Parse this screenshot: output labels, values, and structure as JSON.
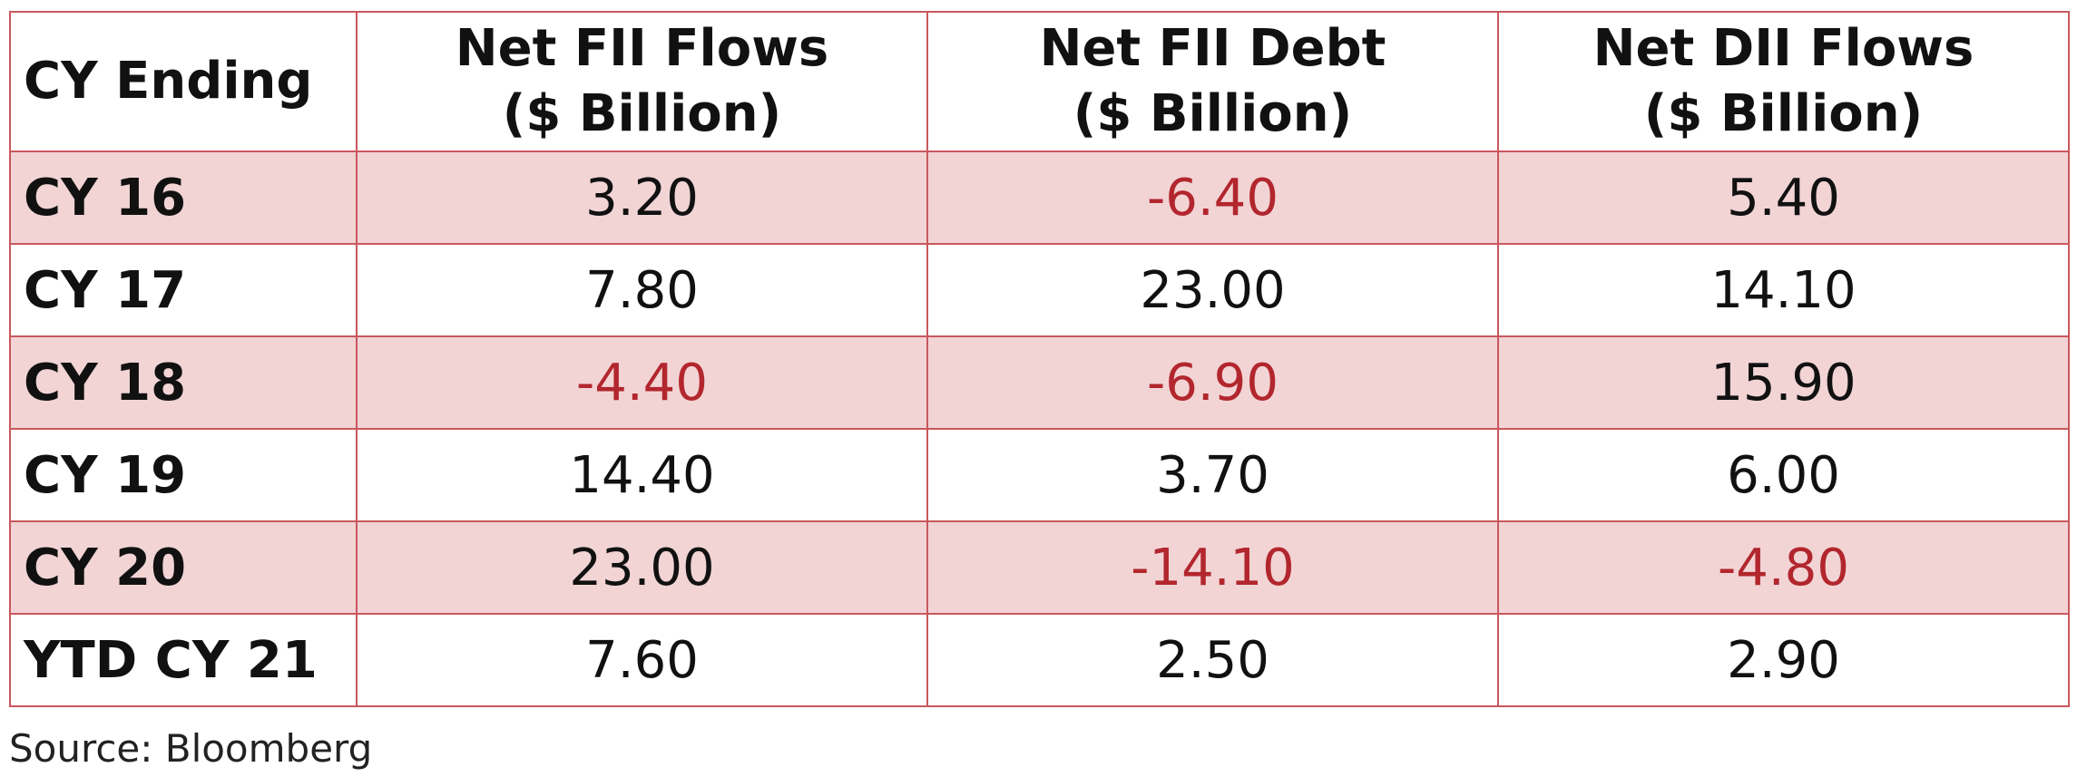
{
  "chart_data": {
    "type": "table",
    "columns": [
      "CY Ending",
      "Net FII Flows\n($ Billion)",
      "Net FII Debt\n($ Billion)",
      "Net DII Flows\n($ Billion)"
    ],
    "rows": [
      {
        "label": "CY 16",
        "values": [
          "3.20",
          "-6.40",
          "5.40"
        ]
      },
      {
        "label": "CY 17",
        "values": [
          "7.80",
          "23.00",
          "14.10"
        ]
      },
      {
        "label": "CY 18",
        "values": [
          "-4.40",
          "-6.90",
          "15.90"
        ]
      },
      {
        "label": "CY 19",
        "values": [
          "14.40",
          "3.70",
          "6.00"
        ]
      },
      {
        "label": "CY 20",
        "values": [
          "23.00",
          "-14.10",
          "-4.80"
        ]
      },
      {
        "label": "YTD CY 21",
        "values": [
          "7.60",
          "2.50",
          "2.90"
        ]
      }
    ],
    "source": "Source: Bloomberg"
  },
  "colors": {
    "border": "#c9575d",
    "shaded_row": "#f2d4d5",
    "negative_value": "#b2262d",
    "text": "#111111"
  }
}
